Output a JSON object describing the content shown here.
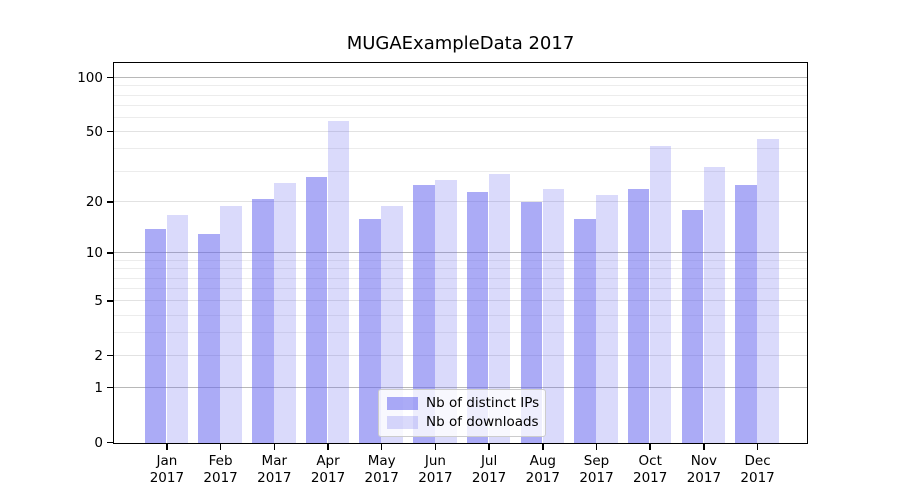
{
  "title": "MUGAExampleData 2017",
  "legend": {
    "items": [
      {
        "label": "Nb of distinct IPs",
        "swatch_rgba": "rgba(102,102,238,0.55)",
        "swatch_hex_on_white": "#a9a9f4"
      },
      {
        "label": "Nb of downloads",
        "swatch_rgba": "rgba(102,102,238,0.24)",
        "swatch_hex_on_white": "#dadaf9"
      }
    ],
    "position": "inside lower center"
  },
  "chart_data": {
    "type": "bar",
    "title": "MUGAExampleData 2017",
    "categories": [
      "Jan 2017",
      "Feb 2017",
      "Mar 2017",
      "Apr 2017",
      "May 2017",
      "Jun 2017",
      "Jul 2017",
      "Aug 2017",
      "Sep 2017",
      "Oct 2017",
      "Nov 2017",
      "Dec 2017"
    ],
    "x_months": [
      "Jan",
      "Feb",
      "Mar",
      "Apr",
      "May",
      "Jun",
      "Jul",
      "Aug",
      "Sep",
      "Oct",
      "Nov",
      "Dec"
    ],
    "x_year_line": "2017",
    "series": [
      {
        "name": "Nb of distinct IPs",
        "color": "rgba(102,102,238,0.55)",
        "values": [
          14,
          13,
          21,
          28,
          16,
          25,
          23,
          20,
          16,
          24,
          18,
          25
        ]
      },
      {
        "name": "Nb of downloads",
        "color": "rgba(102,102,238,0.24)",
        "values": [
          17,
          19,
          26,
          58,
          19,
          27,
          29,
          24,
          22,
          42,
          32,
          46
        ]
      }
    ],
    "xlabel": "",
    "ylabel": "",
    "y_scale": "log10(1+x)",
    "y_ticks_labeled": [
      0,
      1,
      2,
      5,
      10,
      20,
      50,
      100
    ],
    "y_ticks_minor": [
      3,
      4,
      6,
      7,
      8,
      9,
      30,
      40,
      60,
      70,
      80,
      90
    ],
    "ylim": [
      0,
      124
    ],
    "grid": "horizontal, minor and major",
    "legend_position": "inside lower center",
    "colors": {
      "grid_major_decades": "#b8b8b8",
      "grid_labeled_nondecade": "#e2e2e2",
      "grid_minor": "#ececec",
      "spine": "#000000",
      "text": "#000000",
      "background": "#ffffff"
    }
  }
}
